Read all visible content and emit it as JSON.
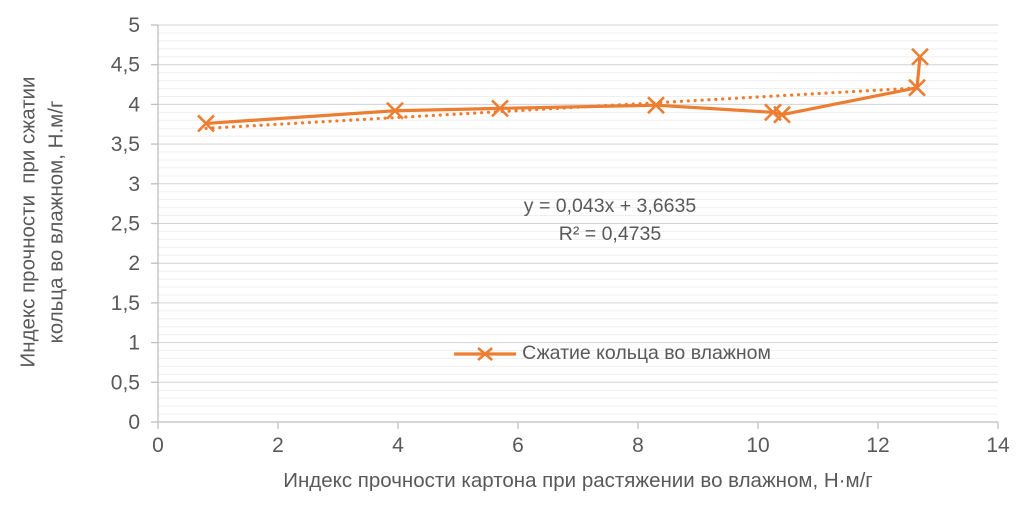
{
  "colors": {
    "accent": "#ED7D31",
    "text": "#595959",
    "grid_major": "#D3D3D3",
    "grid_minor": "#EFEFEF",
    "axis": "#BFBFBF"
  },
  "chart_data": {
    "type": "line",
    "title": "",
    "xlabel": "Индекс прочности картона при растяжении во влажном, Н·м/г",
    "ylabel": "Индекс прочности  при сжатии кольца во влажном, Н.м/г",
    "ylabel_lines": [
      "Индекс прочности  при сжатии",
      "кольца во влажном, Н.м/г"
    ],
    "xlim": [
      0,
      14
    ],
    "ylim": [
      0,
      5
    ],
    "x_ticks": {
      "start": 0,
      "step": 2,
      "labels": [
        "0",
        "2",
        "4",
        "6",
        "8",
        "10",
        "12",
        "14"
      ]
    },
    "y_ticks": {
      "start": 0,
      "step": 0.5,
      "labels": [
        "0",
        "0,5",
        "1",
        "1,5",
        "2",
        "2,5",
        "3",
        "3,5",
        "4",
        "4,5",
        "5"
      ]
    },
    "minor_grid_step_y": 0.1,
    "grid": "horizontal-only",
    "legend_position": "inside-bottom-center",
    "series": [
      {
        "name": "Сжатие кольца во влажном",
        "color": "#ED7D31",
        "marker": "x",
        "points": [
          [
            0.8,
            3.76
          ],
          [
            3.95,
            3.92
          ],
          [
            5.7,
            3.95
          ],
          [
            8.3,
            3.99
          ],
          [
            10.25,
            3.9
          ],
          [
            10.4,
            3.87
          ],
          [
            12.65,
            4.21
          ],
          [
            12.7,
            4.6
          ]
        ]
      }
    ],
    "trendline": {
      "type": "linear",
      "slope": 0.043,
      "intercept": 3.6635,
      "r2": 0.4735,
      "x_range": [
        0.8,
        12.7
      ],
      "style": "dotted",
      "color": "#ED7D31",
      "equation_label": "y = 0,043x + 3,6635",
      "r2_label": "R² = 0,4735"
    }
  }
}
